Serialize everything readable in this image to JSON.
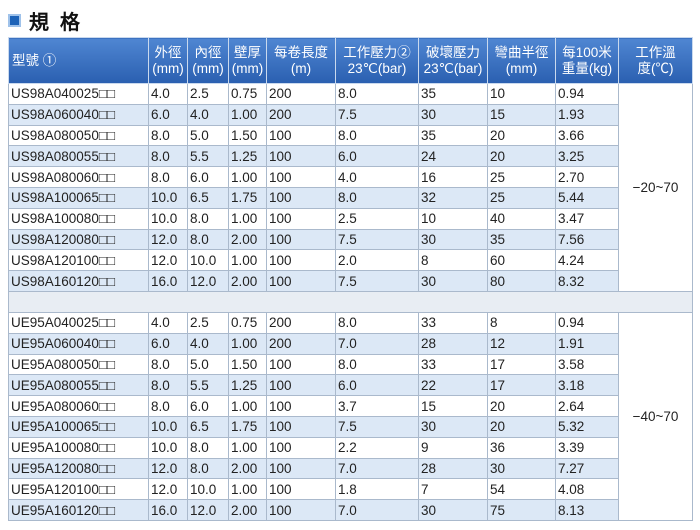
{
  "header": {
    "title": "規 格"
  },
  "table": {
    "columns": [
      "型號 ①",
      "外徑\n(mm)",
      "內徑\n(mm)",
      "壁厚\n(mm)",
      "每卷長度\n(m)",
      "工作壓力②\n23℃(bar)",
      "破壞壓力\n23℃(bar)",
      "彎曲半徑\n(mm)",
      "每100米\n重量(kg)",
      "工作溫\n度(℃)"
    ],
    "groups": [
      {
        "temp": "−20~70",
        "rows": [
          [
            "US98A040025□□",
            "4.0",
            "2.5",
            "0.75",
            "200",
            "8.0",
            "35",
            "10",
            "0.94"
          ],
          [
            "US98A060040□□",
            "6.0",
            "4.0",
            "1.00",
            "200",
            "7.5",
            "30",
            "15",
            "1.93"
          ],
          [
            "US98A080050□□",
            "8.0",
            "5.0",
            "1.50",
            "100",
            "8.0",
            "35",
            "20",
            "3.66"
          ],
          [
            "US98A080055□□",
            "8.0",
            "5.5",
            "1.25",
            "100",
            "6.0",
            "24",
            "20",
            "3.25"
          ],
          [
            "US98A080060□□",
            "8.0",
            "6.0",
            "1.00",
            "100",
            "4.0",
            "16",
            "25",
            "2.70"
          ],
          [
            "US98A100065□□",
            "10.0",
            "6.5",
            "1.75",
            "100",
            "8.0",
            "32",
            "25",
            "5.44"
          ],
          [
            "US98A100080□□",
            "10.0",
            "8.0",
            "1.00",
            "100",
            "2.5",
            "10",
            "40",
            "3.47"
          ],
          [
            "US98A120080□□",
            "12.0",
            "8.0",
            "2.00",
            "100",
            "7.5",
            "30",
            "35",
            "7.56"
          ],
          [
            "US98A120100□□",
            "12.0",
            "10.0",
            "1.00",
            "100",
            "2.0",
            "8",
            "60",
            "4.24"
          ],
          [
            "US98A160120□□",
            "16.0",
            "12.0",
            "2.00",
            "100",
            "7.5",
            "30",
            "80",
            "8.32"
          ]
        ]
      },
      {
        "temp": "−40~70",
        "rows": [
          [
            "UE95A040025□□",
            "4.0",
            "2.5",
            "0.75",
            "200",
            "8.0",
            "33",
            "8",
            "0.94"
          ],
          [
            "UE95A060040□□",
            "6.0",
            "4.0",
            "1.00",
            "200",
            "7.0",
            "28",
            "12",
            "1.91"
          ],
          [
            "UE95A080050□□",
            "8.0",
            "5.0",
            "1.50",
            "100",
            "8.0",
            "33",
            "17",
            "3.58"
          ],
          [
            "UE95A080055□□",
            "8.0",
            "5.5",
            "1.25",
            "100",
            "6.0",
            "22",
            "17",
            "3.18"
          ],
          [
            "UE95A080060□□",
            "8.0",
            "6.0",
            "1.00",
            "100",
            "3.7",
            "15",
            "20",
            "2.64"
          ],
          [
            "UE95A100065□□",
            "10.0",
            "6.5",
            "1.75",
            "100",
            "7.5",
            "30",
            "20",
            "5.32"
          ],
          [
            "UE95A100080□□",
            "10.0",
            "8.0",
            "1.00",
            "100",
            "2.2",
            "9",
            "36",
            "3.39"
          ],
          [
            "UE95A120080□□",
            "12.0",
            "8.0",
            "2.00",
            "100",
            "7.0",
            "28",
            "30",
            "7.27"
          ],
          [
            "UE95A120100□□",
            "12.0",
            "10.0",
            "1.00",
            "100",
            "1.8",
            "7",
            "54",
            "4.08"
          ],
          [
            "UE95A160120□□",
            "16.0",
            "12.0",
            "2.00",
            "100",
            "7.0",
            "30",
            "75",
            "8.13"
          ]
        ]
      }
    ]
  }
}
